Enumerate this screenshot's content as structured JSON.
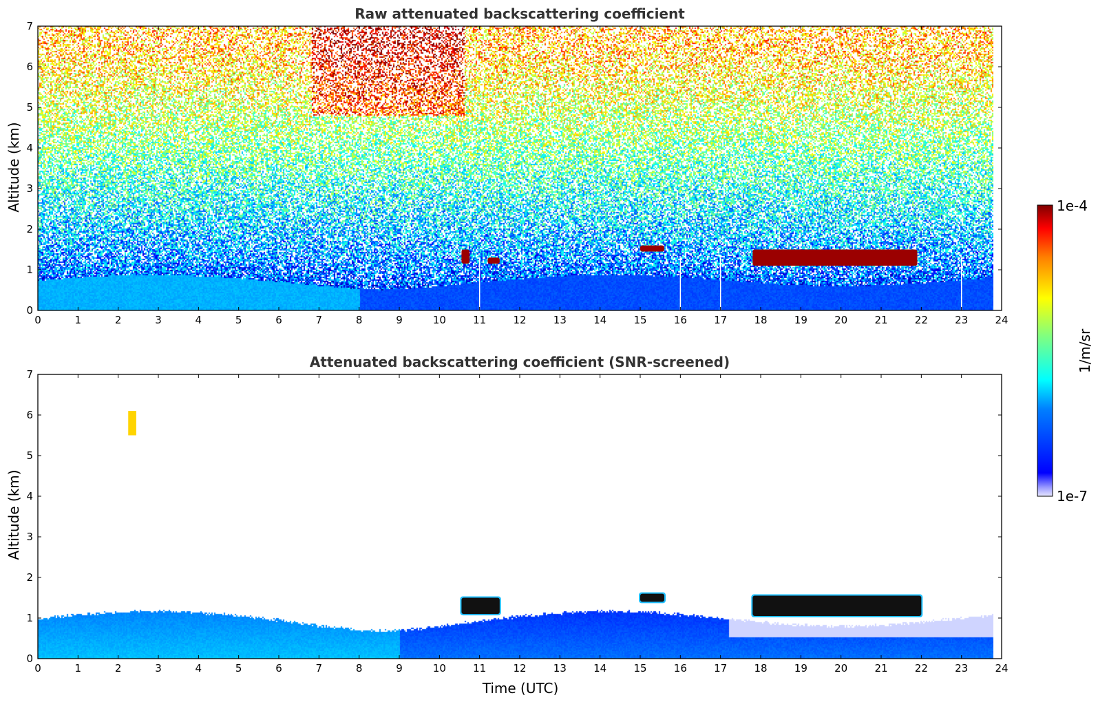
{
  "chart_data": [
    {
      "type": "heatmap",
      "title": "Raw attenuated backscattering coefficient",
      "xlabel": "",
      "ylabel": "Altitude (km)",
      "xlim": [
        0,
        24
      ],
      "ylim": [
        0,
        7
      ],
      "x_ticks": [
        0,
        1,
        2,
        3,
        4,
        5,
        6,
        7,
        8,
        9,
        10,
        11,
        12,
        13,
        14,
        15,
        16,
        17,
        18,
        19,
        20,
        21,
        22,
        23,
        24
      ],
      "y_ticks": [
        0,
        1,
        2,
        3,
        4,
        5,
        6,
        7
      ],
      "data_end_time": 23.8,
      "log_color_scale": true,
      "features": [
        {
          "kind": "boundary-layer",
          "t_start": 0,
          "t_end": 23.8,
          "top_km": 1.0
        },
        {
          "kind": "cloud",
          "t_start": 10.55,
          "t_end": 10.75,
          "alt_low": 1.15,
          "alt_high": 1.5
        },
        {
          "kind": "cloud",
          "t_start": 11.2,
          "t_end": 11.5,
          "alt_low": 1.15,
          "alt_high": 1.3
        },
        {
          "kind": "cloud",
          "t_start": 15.0,
          "t_end": 15.6,
          "alt_low": 1.45,
          "alt_high": 1.6
        },
        {
          "kind": "cloud",
          "t_start": 17.8,
          "t_end": 21.9,
          "alt_low": 1.1,
          "alt_high": 1.5
        },
        {
          "kind": "gap",
          "t": 11.0
        },
        {
          "kind": "gap",
          "t": 16.0
        },
        {
          "kind": "gap",
          "t": 17.0
        },
        {
          "kind": "gap",
          "t": 23.0
        }
      ]
    },
    {
      "type": "heatmap",
      "title": "Attenuated backscattering coefficient (SNR-screened)",
      "xlabel": "Time (UTC)",
      "ylabel": "Altitude (km)",
      "xlim": [
        0,
        24
      ],
      "ylim": [
        0,
        7
      ],
      "x_ticks": [
        0,
        1,
        2,
        3,
        4,
        5,
        6,
        7,
        8,
        9,
        10,
        11,
        12,
        13,
        14,
        15,
        16,
        17,
        18,
        19,
        20,
        21,
        22,
        23,
        24
      ],
      "y_ticks": [
        0,
        1,
        2,
        3,
        4,
        5,
        6,
        7
      ],
      "data_end_time": 23.8,
      "log_color_scale": true,
      "features": [
        {
          "kind": "boundary-layer",
          "t_start": 0,
          "t_end": 23.8,
          "top_km": 1.0
        },
        {
          "kind": "cloud",
          "t_start": 2.25,
          "t_end": 2.45,
          "alt_low": 5.5,
          "alt_high": 6.1
        },
        {
          "kind": "cloud",
          "t_start": 10.55,
          "t_end": 11.5,
          "alt_low": 1.1,
          "alt_high": 1.5
        },
        {
          "kind": "cloud",
          "t_start": 15.0,
          "t_end": 15.6,
          "alt_low": 1.4,
          "alt_high": 1.6
        },
        {
          "kind": "cloud",
          "t_start": 17.8,
          "t_end": 22.0,
          "alt_low": 1.05,
          "alt_high": 1.55
        }
      ]
    }
  ],
  "colorbar": {
    "label": "1/m/sr",
    "max_label": "1e-4",
    "min_label": "1e-7",
    "min": 1e-07,
    "max": 0.0001,
    "colormap": "jet"
  }
}
